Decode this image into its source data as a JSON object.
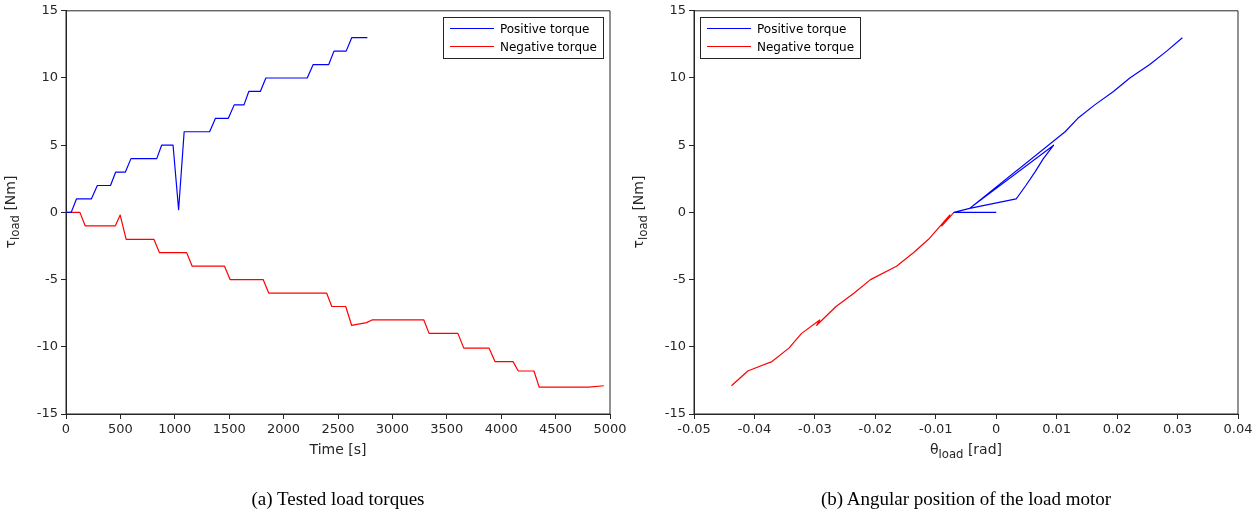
{
  "chart_data": [
    {
      "type": "line",
      "xlabel": "Time [s]",
      "ylabel": "τ$_{load}$ [Nm]",
      "annotations": [
        "(a) Tested load torques"
      ],
      "xlim": [
        0,
        5000
      ],
      "ylim": [
        -15,
        15
      ],
      "xticks": [
        0,
        500,
        1000,
        1500,
        2000,
        2500,
        3000,
        3500,
        4000,
        4500,
        5000
      ],
      "yticks": [
        -15,
        -10,
        -5,
        0,
        5,
        10,
        15
      ],
      "legend": "top right",
      "series": [
        {
          "name": "Positive torque",
          "color": "#0000ff",
          "x": [
            0,
            48,
            96,
            233,
            288,
            409,
            457,
            546,
            597,
            834,
            879,
            984,
            1035,
            1086,
            1320,
            1374,
            1492,
            1546,
            1636,
            1680,
            1786,
            1837,
            2217,
            2272,
            2415,
            2463,
            2575,
            2626,
            2770
          ],
          "values": [
            0,
            0,
            1,
            1,
            2,
            2,
            3,
            3,
            4,
            4,
            5,
            5,
            0.2,
            6,
            6,
            7,
            7,
            8,
            8,
            9,
            9,
            10,
            10,
            11,
            11,
            12,
            12,
            13,
            13
          ]
        },
        {
          "name": "Negative torque",
          "color": "#ff0000",
          "x": [
            0,
            128,
            176,
            454,
            498,
            553,
            808,
            859,
            1109,
            1160,
            1457,
            1508,
            1812,
            1863,
            2395,
            2443,
            2571,
            2625,
            2762,
            2813,
            3289,
            3337,
            3602,
            3656,
            3889,
            3943,
            4109,
            4157,
            4301,
            4349,
            4806,
            4943
          ],
          "values": [
            0,
            0,
            -1,
            -1,
            -0.2,
            -2,
            -2,
            -3,
            -3,
            -4,
            -4,
            -5,
            -5,
            -6,
            -6,
            -7,
            -7,
            -8.4,
            -8.2,
            -8,
            -8,
            -9,
            -9,
            -10.1,
            -10.1,
            -11.1,
            -11.1,
            -11.8,
            -11.8,
            -13,
            -13,
            -12.9
          ]
        }
      ]
    },
    {
      "type": "line",
      "xlabel": "θ$_{load}$ [rad]",
      "ylabel": "τ$_{load}$ [Nm]",
      "annotations": [
        "(b) Angular position of the load motor"
      ],
      "xlim": [
        -0.05,
        0.04
      ],
      "ylim": [
        -15,
        15
      ],
      "xticks": [
        -0.05,
        -0.04,
        -0.03,
        -0.02,
        -0.01,
        0,
        0.01,
        0.02,
        0.03,
        0.04
      ],
      "yticks": [
        -15,
        -10,
        -5,
        0,
        5,
        10,
        15
      ],
      "legend": "top left",
      "series": [
        {
          "name": "Positive torque",
          "color": "#0000ff",
          "x": [
            0,
            -0.007,
            -0.0044,
            0.0033,
            0.0049,
            0.0064,
            0.0078,
            0.0095,
            -0.0044,
            0.0114,
            0.0135,
            0.0163,
            0.0194,
            0.0221,
            0.0254,
            0.0282,
            0.0308
          ],
          "values": [
            0,
            0,
            0.3,
            1,
            2,
            3,
            4,
            5,
            0.3,
            6,
            7,
            8,
            9,
            10,
            11,
            12,
            13
          ]
        },
        {
          "name": "Negative torque",
          "color": "#ff0000",
          "x": [
            -0.007,
            -0.009,
            -0.0077,
            -0.0112,
            -0.0137,
            -0.0165,
            -0.0208,
            -0.0235,
            -0.0265,
            -0.0297,
            -0.0292,
            -0.0322,
            -0.0343,
            -0.0371,
            -0.0411,
            -0.0438
          ],
          "values": [
            0,
            -1,
            -0.2,
            -2,
            -3,
            -4,
            -5,
            -6,
            -7,
            -8.4,
            -8,
            -9,
            -10.1,
            -11.1,
            -11.8,
            -12.9
          ]
        }
      ]
    }
  ]
}
